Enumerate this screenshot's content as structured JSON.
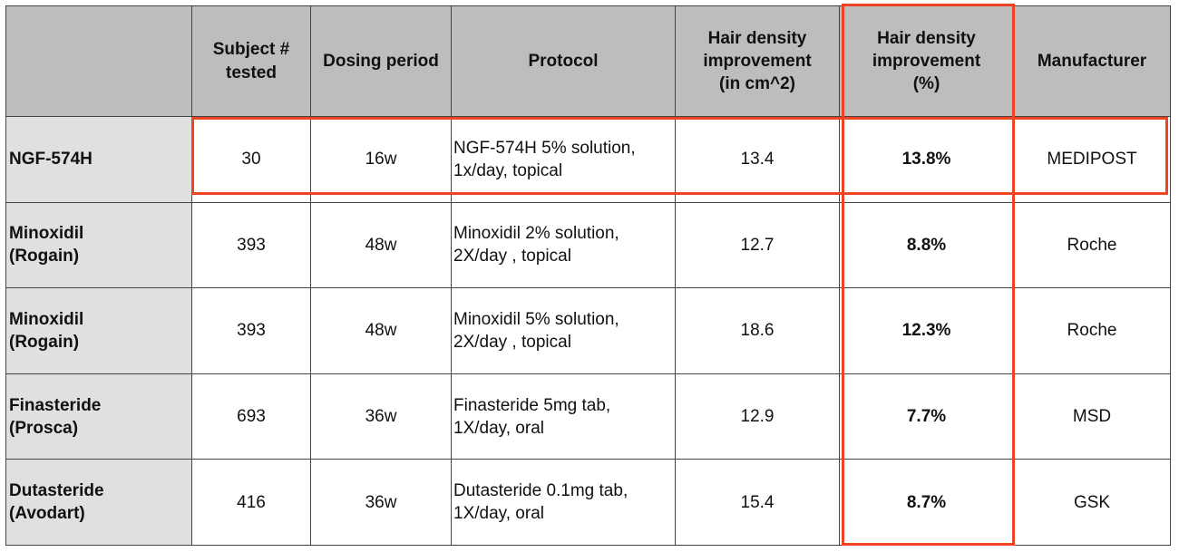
{
  "table": {
    "headers": [
      "",
      "Subject #\ntested",
      "Dosing period",
      "Protocol",
      "Hair density\nimprovement\n(in cm^2)",
      "Hair density\nimprovement\n(%)",
      "Manufacturer"
    ],
    "rows": [
      {
        "name": "NGF-574H",
        "subjects": "30",
        "period": "16w",
        "protocol": "NGF-574H 5% solution,\n1x/day, topical",
        "density_cm2": "13.4",
        "density_pct": "13.8%",
        "manufacturer": "MEDIPOST"
      },
      {
        "name": "Minoxidil\n(Rogain)",
        "subjects": "393",
        "period": "48w",
        "protocol": "Minoxidil 2% solution,\n2X/day , topical",
        "density_cm2": "12.7",
        "density_pct": "8.8%",
        "manufacturer": "Roche"
      },
      {
        "name": "Minoxidil\n(Rogain)",
        "subjects": "393",
        "period": "48w",
        "protocol": "Minoxidil 5% solution,\n2X/day , topical",
        "density_cm2": "18.6",
        "density_pct": "12.3%",
        "manufacturer": "Roche"
      },
      {
        "name": "Finasteride\n(Prosca)",
        "subjects": "693",
        "period": "36w",
        "protocol": "Finasteride 5mg tab,\n1X/day, oral",
        "density_cm2": "12.9",
        "density_pct": "7.7%",
        "manufacturer": "MSD"
      },
      {
        "name": "Dutasteride\n(Avodart)",
        "subjects": "416",
        "period": "36w",
        "protocol": "Dutasteride 0.1mg tab,\n1X/day, oral",
        "density_cm2": "15.4",
        "density_pct": "8.7%",
        "manufacturer": "GSK"
      }
    ]
  },
  "highlight_color": "#ee4422"
}
